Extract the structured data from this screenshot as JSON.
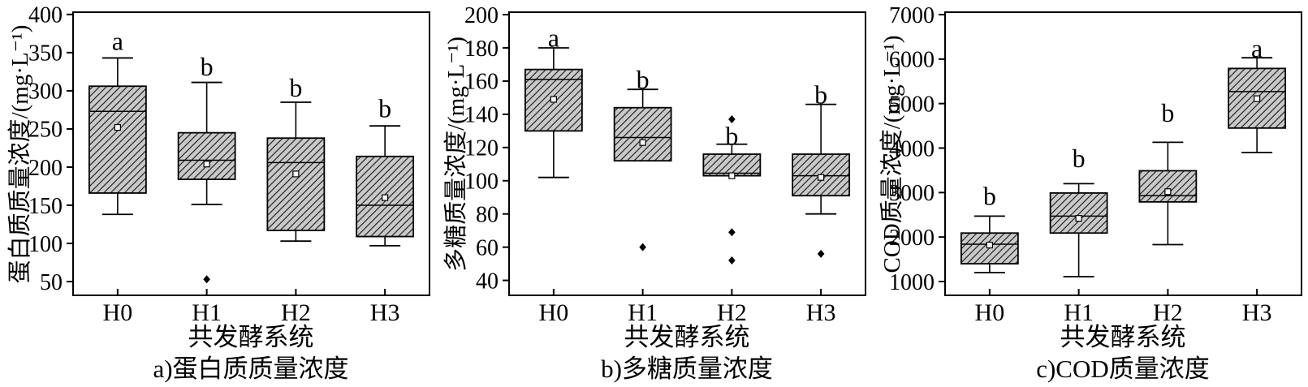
{
  "figure": {
    "background": "#ffffff",
    "xlabel": "共发酵系统",
    "categories": [
      "H0",
      "H1",
      "H2",
      "H3"
    ],
    "colors": {
      "box_fill": "#c9c9c9",
      "hatch_line": "#2b2b2b",
      "axis": "#000000",
      "text": "#000000",
      "mean_fill": "#ffffff"
    }
  },
  "chart_data": [
    {
      "type": "box",
      "panel": "a",
      "caption": "a)蛋白质质量浓度",
      "ylabel": "蛋白质质量浓度/(mg·L⁻¹)",
      "xlabel": "共发酵系统",
      "categories": [
        "H0",
        "H1",
        "H2",
        "H3"
      ],
      "ylim": [
        32,
        403
      ],
      "yticks": [
        50,
        100,
        150,
        200,
        250,
        300,
        350,
        400
      ],
      "grid": false,
      "boxes": [
        {
          "category": "H0",
          "whisker_low": 138,
          "q1": 166,
          "median": 273,
          "q3": 306,
          "whisker_high": 343,
          "mean": 252,
          "outliers": [],
          "sig_letter": "a",
          "sig_letter_y": 365
        },
        {
          "category": "H1",
          "whisker_low": 151,
          "q1": 184,
          "median": 209,
          "q3": 245,
          "whisker_high": 311,
          "mean": 204,
          "outliers": [
            53
          ],
          "sig_letter": "b",
          "sig_letter_y": 332
        },
        {
          "category": "H2",
          "whisker_low": 103,
          "q1": 117,
          "median": 206,
          "q3": 238,
          "whisker_high": 285,
          "mean": 191,
          "outliers": [],
          "sig_letter": "b",
          "sig_letter_y": 304
        },
        {
          "category": "H3",
          "whisker_low": 97,
          "q1": 109,
          "median": 150,
          "q3": 214,
          "whisker_high": 254,
          "mean": 160,
          "outliers": [],
          "sig_letter": "b",
          "sig_letter_y": 277
        }
      ]
    },
    {
      "type": "box",
      "panel": "b",
      "caption": "b)多糖质量浓度",
      "ylabel": "多糖质量浓度/(mg·L⁻¹)",
      "xlabel": "共发酵系统",
      "categories": [
        "H0",
        "H1",
        "H2",
        "H3"
      ],
      "ylim": [
        31,
        201.5
      ],
      "yticks": [
        40,
        60,
        80,
        100,
        120,
        140,
        160,
        180,
        200
      ],
      "grid": false,
      "boxes": [
        {
          "category": "H0",
          "whisker_low": 102,
          "q1": 130,
          "median": 161,
          "q3": 167,
          "whisker_high": 180,
          "mean": 149,
          "outliers": [],
          "sig_letter": "a",
          "sig_letter_y": 186
        },
        {
          "category": "H1",
          "whisker_low": 112,
          "q1": 112,
          "median": 126,
          "q3": 144,
          "whisker_high": 155,
          "mean": 123,
          "outliers": [
            60
          ],
          "sig_letter": "b",
          "sig_letter_y": 161
        },
        {
          "category": "H2",
          "whisker_low": 103,
          "q1": 103,
          "median": 104.5,
          "q3": 116,
          "whisker_high": 122,
          "mean": 103,
          "outliers": [
            137,
            69,
            52
          ],
          "sig_letter": "b",
          "sig_letter_y": 127
        },
        {
          "category": "H3",
          "whisker_low": 80,
          "q1": 91,
          "median": 103,
          "q3": 116,
          "whisker_high": 146,
          "mean": 102,
          "outliers": [
            56
          ],
          "sig_letter": "b",
          "sig_letter_y": 152
        }
      ]
    },
    {
      "type": "box",
      "panel": "c",
      "caption": "c)COD质量浓度",
      "ylabel": "COD质量浓度/(mg·L⁻¹)",
      "xlabel": "共发酵系统",
      "categories": [
        "H0",
        "H1",
        "H2",
        "H3"
      ],
      "ylim": [
        690,
        7055
      ],
      "yticks": [
        1000,
        2000,
        3000,
        4000,
        5000,
        6000,
        7000
      ],
      "grid": false,
      "boxes": [
        {
          "category": "H0",
          "whisker_low": 1200,
          "q1": 1400,
          "median": 1840,
          "q3": 2090,
          "whisker_high": 2470,
          "mean": 1820,
          "outliers": [],
          "sig_letter": "b",
          "sig_letter_y": 2920
        },
        {
          "category": "H1",
          "whisker_low": 1110,
          "q1": 2090,
          "median": 2470,
          "q3": 2990,
          "whisker_high": 3200,
          "mean": 2420,
          "outliers": [],
          "sig_letter": "b",
          "sig_letter_y": 3770
        },
        {
          "category": "H2",
          "whisker_low": 1830,
          "q1": 2790,
          "median": 2930,
          "q3": 3490,
          "whisker_high": 4130,
          "mean": 3020,
          "outliers": [],
          "sig_letter": "b",
          "sig_letter_y": 4790
        },
        {
          "category": "H3",
          "whisker_low": 3900,
          "q1": 4450,
          "median": 5270,
          "q3": 5790,
          "whisker_high": 6030,
          "mean": 5110,
          "outliers": [],
          "sig_letter": "a",
          "sig_letter_y": 6240
        }
      ]
    }
  ]
}
